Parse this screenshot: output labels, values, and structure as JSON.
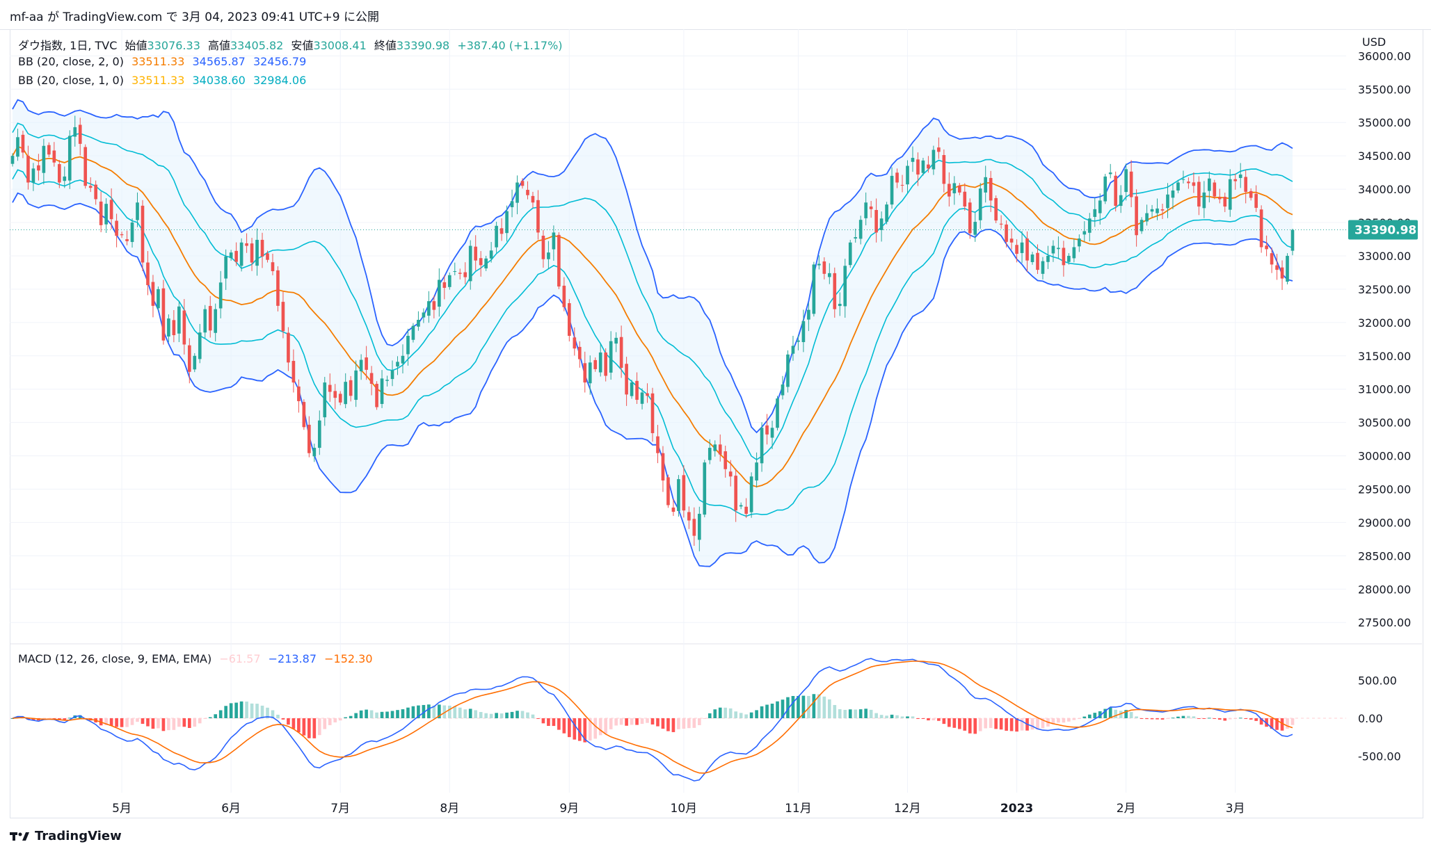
{
  "header": {
    "text": "mf-aa が TradingView.com で 3月 04, 2023 09:41 UTC+9 に公開"
  },
  "legend": {
    "symbol": "ダウ指数, 1日, TVC",
    "open_label": "始値",
    "open": "33076.33",
    "high_label": "高値",
    "high": "33405.82",
    "low_label": "安値",
    "low": "33008.41",
    "close_label": "終値",
    "close": "33390.98",
    "change": "+387.40 (+1.17%)",
    "bb2_label": "BB (20, close, 2, 0)",
    "bb2_basis": "33511.33",
    "bb2_upper": "34565.87",
    "bb2_lower": "32456.79",
    "bb1_label": "BB (20, close, 1, 0)",
    "bb1_basis": "33511.33",
    "bb1_upper": "34038.60",
    "bb1_lower": "32984.06",
    "macd_label": "MACD (12, 26, close, 9, EMA, EMA)",
    "macd_hist": "−61.57",
    "macd_line": "−213.87",
    "macd_signal": "−152.30"
  },
  "currency": "USD",
  "last_price_label": "33390.98",
  "footer": {
    "brand": "TradingView"
  },
  "colors": {
    "up": "#26a69a",
    "down": "#ef5350",
    "basis": "#f57c00",
    "bb2": "#2962ff",
    "bb1": "#00bcd4",
    "fill": "#e3f2fd",
    "macd": "#2962ff",
    "signal": "#ff6d00",
    "hist_up_strong": "#26a69a",
    "hist_up_weak": "#b2dfdb",
    "hist_down_strong": "#ff5252",
    "hist_down_weak": "#ffcdd2"
  },
  "chart_data": [
    {
      "type": "candlestick",
      "title": "ダウ指数, 1日, TVC",
      "x_ticks": [
        "5月",
        "6月",
        "7月",
        "8月",
        "9月",
        "10月",
        "11月",
        "12月",
        "2023",
        "2月",
        "3月"
      ],
      "x_tick_index": [
        21,
        42,
        63,
        84,
        107,
        129,
        151,
        172,
        193,
        214,
        235
      ],
      "y_ticks": [
        27500,
        28000,
        28500,
        29000,
        29500,
        30000,
        30500,
        31000,
        31500,
        32000,
        32500,
        33000,
        33500,
        34000,
        34500,
        35000,
        35500,
        36000
      ],
      "y_range": [
        27200,
        36400
      ],
      "close": [
        34500,
        34780,
        34550,
        34100,
        34310,
        34280,
        34650,
        34520,
        34400,
        34100,
        34190,
        34800,
        34930,
        34680,
        34050,
        34020,
        33850,
        33460,
        33780,
        33550,
        33300,
        33310,
        33220,
        33500,
        33800,
        32900,
        32560,
        32250,
        32500,
        31730,
        32060,
        31810,
        32240,
        31670,
        31260,
        31500,
        31850,
        32200,
        31880,
        32200,
        32600,
        32990,
        33050,
        32910,
        33200,
        33150,
        32900,
        33240,
        32990,
        32940,
        32770,
        32250,
        31870,
        31400,
        31100,
        30820,
        30430,
        30040,
        30120,
        30530,
        31100,
        30960,
        30870,
        30800,
        31110,
        30900,
        31280,
        31440,
        31290,
        31080,
        30730,
        31160,
        31140,
        31280,
        31410,
        31500,
        31800,
        31950,
        32040,
        32150,
        32320,
        32190,
        32640,
        32520,
        32710,
        32770,
        32730,
        32680,
        33150,
        32930,
        32860,
        32960,
        33080,
        33450,
        33330,
        33670,
        33820,
        34100,
        34050,
        33910,
        33800,
        33350,
        32950,
        33050,
        33350,
        32540,
        32230,
        31800,
        31610,
        31450,
        31100,
        31400,
        31300,
        31550,
        31200,
        31720,
        31770,
        31320,
        30920,
        31100,
        30840,
        30950,
        30900,
        30340,
        30040,
        29630,
        29260,
        29160,
        29650,
        29180,
        29030,
        28800,
        29130,
        29900,
        30120,
        30170,
        30020,
        29800,
        29690,
        29180,
        29260,
        29130,
        29690,
        29900,
        30420,
        30320,
        30420,
        30860,
        31070,
        31520,
        31650,
        31730,
        32020,
        32190,
        32870,
        32880,
        32730,
        32740,
        32200,
        32280,
        32850,
        33200,
        33280,
        33540,
        33800,
        33700,
        33350,
        33560,
        33770,
        34200,
        34100,
        34060,
        34350,
        34470,
        34220,
        34430,
        34310,
        34590,
        34560,
        34080,
        33890,
        34090,
        33950,
        33740,
        33340,
        33510,
        34010,
        34180,
        33830,
        33530,
        33470,
        33210,
        33200,
        33030,
        33200,
        32930,
        33020,
        32790,
        32920,
        33000,
        33150,
        33120,
        32860,
        33000,
        33130,
        33260,
        33370,
        33560,
        33700,
        33830,
        34190,
        34250,
        33750,
        33910,
        34300,
        33880,
        33310,
        33540,
        33640,
        33700,
        33710,
        33680,
        33920,
        33980,
        34100,
        34150,
        34090,
        34050,
        33740,
        33950,
        34160,
        33890,
        33850,
        33740,
        34150,
        34120,
        34220,
        33960,
        33870,
        33720,
        33130,
        33100,
        32870,
        32790,
        32660,
        33000,
        33390
      ],
      "notes": "approximate daily OHLC reconstructed from the chart; Bollinger Bands (20,2) and (20,1) and MACD (12,26,9) computed from these closes",
      "last_values": {
        "open": 33076.33,
        "high": 33405.82,
        "low": 33008.41,
        "close": 33390.98,
        "bb2_upper": 34565.87,
        "bb2_lower": 32456.79,
        "bb_basis": 33511.33,
        "bb1_upper": 34038.6,
        "bb1_lower": 32984.06,
        "macd_hist": -61.57,
        "macd": -213.87,
        "signal": -152.3
      },
      "macd_y_ticks": [
        -500,
        0,
        500
      ],
      "macd_y_range": [
        -980,
        980
      ]
    }
  ]
}
